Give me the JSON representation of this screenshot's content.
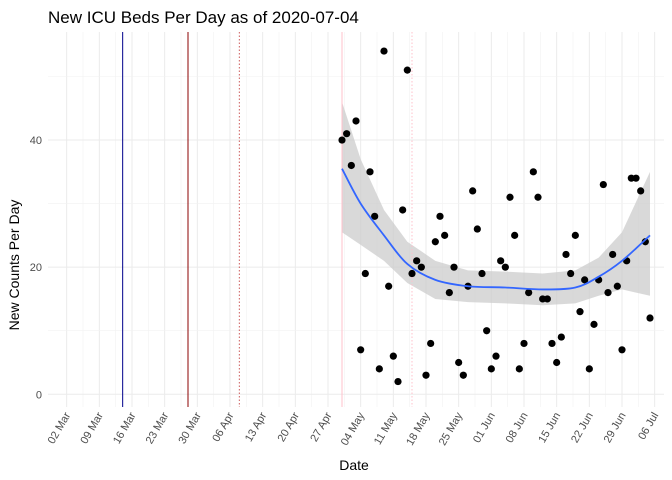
{
  "chart_data": {
    "type": "scatter",
    "title": "New ICU Beds Per Day as of 2020-07-04",
    "xlabel": "Date",
    "ylabel": "New Counts Per Day",
    "x_ticks": [
      "02 Mar",
      "09 Mar",
      "16 Mar",
      "23 Mar",
      "30 Mar",
      "06 Apr",
      "13 Apr",
      "20 Apr",
      "27 Apr",
      "04 May",
      "11 May",
      "18 May",
      "25 May",
      "01 Jun",
      "08 Jun",
      "15 Jun",
      "22 Jun",
      "29 Jun",
      "06 Jul"
    ],
    "x_range": [
      "2020-02-27",
      "2020-07-08"
    ],
    "y_ticks": [
      0,
      20,
      40
    ],
    "ylim": [
      -2,
      57
    ],
    "grid": true,
    "vertical_lines": [
      {
        "date": "2020-03-14",
        "style": "solid",
        "color": "#00008b"
      },
      {
        "date": "2020-03-28",
        "style": "solid",
        "color": "#8b0000"
      },
      {
        "date": "2020-04-08",
        "style": "dotted",
        "color": "#cd5c5c"
      },
      {
        "date": "2020-04-30",
        "style": "solid",
        "color": "#ffc0cb"
      },
      {
        "date": "2020-05-15",
        "style": "dotted",
        "color": "#ffc0cb"
      }
    ],
    "points": [
      {
        "x": "2020-04-30",
        "y": 40
      },
      {
        "x": "2020-05-01",
        "y": 41
      },
      {
        "x": "2020-05-02",
        "y": 36
      },
      {
        "x": "2020-05-03",
        "y": 43
      },
      {
        "x": "2020-05-04",
        "y": 7
      },
      {
        "x": "2020-05-05",
        "y": 19
      },
      {
        "x": "2020-05-06",
        "y": 35
      },
      {
        "x": "2020-05-07",
        "y": 28
      },
      {
        "x": "2020-05-08",
        "y": 4
      },
      {
        "x": "2020-05-09",
        "y": 54
      },
      {
        "x": "2020-05-10",
        "y": 17
      },
      {
        "x": "2020-05-11",
        "y": 6
      },
      {
        "x": "2020-05-12",
        "y": 2
      },
      {
        "x": "2020-05-13",
        "y": 29
      },
      {
        "x": "2020-05-14",
        "y": 51
      },
      {
        "x": "2020-05-15",
        "y": 19
      },
      {
        "x": "2020-05-16",
        "y": 21
      },
      {
        "x": "2020-05-17",
        "y": 20
      },
      {
        "x": "2020-05-18",
        "y": 3
      },
      {
        "x": "2020-05-19",
        "y": 8
      },
      {
        "x": "2020-05-20",
        "y": 24
      },
      {
        "x": "2020-05-21",
        "y": 28
      },
      {
        "x": "2020-05-22",
        "y": 25
      },
      {
        "x": "2020-05-23",
        "y": 16
      },
      {
        "x": "2020-05-24",
        "y": 20
      },
      {
        "x": "2020-05-25",
        "y": 5
      },
      {
        "x": "2020-05-26",
        "y": 3
      },
      {
        "x": "2020-05-27",
        "y": 17
      },
      {
        "x": "2020-05-28",
        "y": 32
      },
      {
        "x": "2020-05-29",
        "y": 26
      },
      {
        "x": "2020-05-30",
        "y": 19
      },
      {
        "x": "2020-05-31",
        "y": 10
      },
      {
        "x": "2020-06-01",
        "y": 4
      },
      {
        "x": "2020-06-02",
        "y": 6
      },
      {
        "x": "2020-06-03",
        "y": 21
      },
      {
        "x": "2020-06-04",
        "y": 20
      },
      {
        "x": "2020-06-05",
        "y": 31
      },
      {
        "x": "2020-06-06",
        "y": 25
      },
      {
        "x": "2020-06-07",
        "y": 4
      },
      {
        "x": "2020-06-08",
        "y": 8
      },
      {
        "x": "2020-06-09",
        "y": 16
      },
      {
        "x": "2020-06-10",
        "y": 35
      },
      {
        "x": "2020-06-11",
        "y": 31
      },
      {
        "x": "2020-06-12",
        "y": 15
      },
      {
        "x": "2020-06-13",
        "y": 15
      },
      {
        "x": "2020-06-14",
        "y": 8
      },
      {
        "x": "2020-06-15",
        "y": 5
      },
      {
        "x": "2020-06-16",
        "y": 9
      },
      {
        "x": "2020-06-17",
        "y": 22
      },
      {
        "x": "2020-06-18",
        "y": 19
      },
      {
        "x": "2020-06-19",
        "y": 25
      },
      {
        "x": "2020-06-20",
        "y": 13
      },
      {
        "x": "2020-06-21",
        "y": 18
      },
      {
        "x": "2020-06-22",
        "y": 4
      },
      {
        "x": "2020-06-23",
        "y": 11
      },
      {
        "x": "2020-06-24",
        "y": 18
      },
      {
        "x": "2020-06-25",
        "y": 33
      },
      {
        "x": "2020-06-26",
        "y": 16
      },
      {
        "x": "2020-06-27",
        "y": 22
      },
      {
        "x": "2020-06-28",
        "y": 17
      },
      {
        "x": "2020-06-29",
        "y": 7
      },
      {
        "x": "2020-06-30",
        "y": 21
      },
      {
        "x": "2020-07-01",
        "y": 34
      },
      {
        "x": "2020-07-02",
        "y": 34
      },
      {
        "x": "2020-07-03",
        "y": 32
      },
      {
        "x": "2020-07-04",
        "y": 24
      },
      {
        "x": "2020-07-05",
        "y": 12
      }
    ],
    "smooth": [
      {
        "x": "2020-04-30",
        "y": 35.5,
        "lo": 25.5,
        "hi": 46
      },
      {
        "x": "2020-05-04",
        "y": 30,
        "lo": 23.5,
        "hi": 37
      },
      {
        "x": "2020-05-09",
        "y": 25,
        "lo": 21,
        "hi": 29
      },
      {
        "x": "2020-05-14",
        "y": 20.5,
        "lo": 17.5,
        "hi": 24
      },
      {
        "x": "2020-05-20",
        "y": 18,
        "lo": 15,
        "hi": 21
      },
      {
        "x": "2020-05-27",
        "y": 17,
        "lo": 14.5,
        "hi": 19.5
      },
      {
        "x": "2020-06-04",
        "y": 16.8,
        "lo": 14.3,
        "hi": 19.3
      },
      {
        "x": "2020-06-12",
        "y": 16.5,
        "lo": 14,
        "hi": 19
      },
      {
        "x": "2020-06-19",
        "y": 16.8,
        "lo": 14.3,
        "hi": 19.5
      },
      {
        "x": "2020-06-24",
        "y": 18.5,
        "lo": 15.5,
        "hi": 21.5
      },
      {
        "x": "2020-06-29",
        "y": 21,
        "lo": 16.5,
        "hi": 25.5
      },
      {
        "x": "2020-07-05",
        "y": 25,
        "lo": 15.5,
        "hi": 35
      }
    ],
    "colors": {
      "points": "#000000",
      "smooth": "#3366ff",
      "band": "#cccccc",
      "grid": "#ebebeb"
    }
  }
}
